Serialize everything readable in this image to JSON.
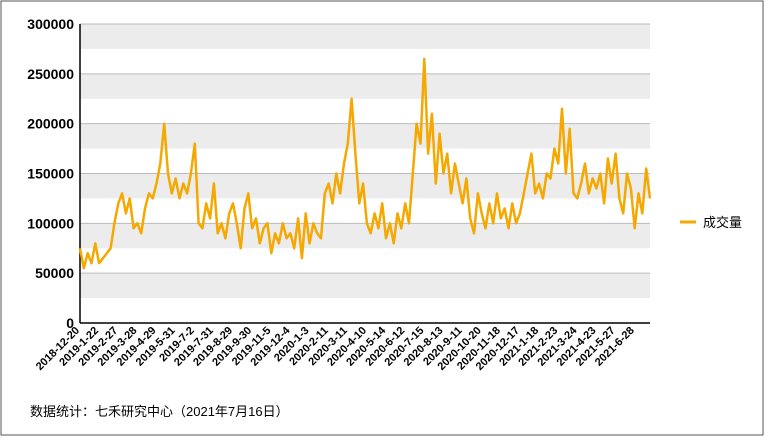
{
  "chart_data": {
    "type": "line",
    "note": "数据统计：七禾研究中心（2021年7月16日）",
    "categories": [
      "2018-12-20",
      null,
      null,
      null,
      null,
      "2019-1-22",
      null,
      null,
      null,
      null,
      "2019-2-27",
      null,
      null,
      null,
      null,
      "2019-3-28",
      null,
      null,
      null,
      null,
      "2019-4-29",
      null,
      null,
      null,
      null,
      "2019-5-31",
      null,
      null,
      null,
      null,
      "2019-7-2",
      null,
      null,
      null,
      null,
      "2019-7-31",
      null,
      null,
      null,
      null,
      "2019-8-29",
      null,
      null,
      null,
      null,
      "2019-9-30",
      null,
      null,
      null,
      null,
      "2019-11-5",
      null,
      null,
      null,
      null,
      "2019-12-4",
      null,
      null,
      null,
      null,
      "2020-1-3",
      null,
      null,
      null,
      null,
      "2020-2-11",
      null,
      null,
      null,
      null,
      "2020-3-11",
      null,
      null,
      null,
      null,
      "2020-4-10",
      null,
      null,
      null,
      null,
      "2020-5-14",
      null,
      null,
      null,
      null,
      "2020-6-12",
      null,
      null,
      null,
      null,
      "2020-7-15",
      null,
      null,
      null,
      null,
      "2020-8-13",
      null,
      null,
      null,
      null,
      "2020-9-11",
      null,
      null,
      null,
      null,
      "2020-10-20",
      null,
      null,
      null,
      null,
      "2020-11-18",
      null,
      null,
      null,
      null,
      "2020-12-17",
      null,
      null,
      null,
      null,
      "2021-1-18",
      null,
      null,
      null,
      null,
      "2021-2-23",
      null,
      null,
      null,
      null,
      "2021-3-24",
      null,
      null,
      null,
      null,
      "2021-4-23",
      null,
      null,
      null,
      null,
      "2021-5-27",
      null,
      null,
      null,
      null,
      "2021-6-28",
      null,
      null,
      null,
      null
    ],
    "series": [
      {
        "name": "成交量",
        "color": "#f5a800",
        "values": [
          75000,
          55000,
          70000,
          60000,
          80000,
          60000,
          65000,
          70000,
          75000,
          100000,
          120000,
          130000,
          110000,
          125000,
          95000,
          100000,
          90000,
          115000,
          130000,
          125000,
          140000,
          160000,
          200000,
          150000,
          130000,
          145000,
          125000,
          140000,
          130000,
          150000,
          180000,
          100000,
          95000,
          120000,
          105000,
          140000,
          90000,
          100000,
          85000,
          110000,
          120000,
          100000,
          75000,
          115000,
          130000,
          95000,
          105000,
          80000,
          95000,
          100000,
          70000,
          90000,
          80000,
          100000,
          85000,
          90000,
          75000,
          105000,
          65000,
          110000,
          80000,
          100000,
          90000,
          85000,
          130000,
          140000,
          120000,
          150000,
          130000,
          160000,
          180000,
          225000,
          170000,
          120000,
          140000,
          100000,
          90000,
          110000,
          95000,
          120000,
          85000,
          100000,
          80000,
          110000,
          95000,
          120000,
          100000,
          150000,
          200000,
          180000,
          265000,
          170000,
          210000,
          140000,
          190000,
          150000,
          170000,
          130000,
          160000,
          140000,
          120000,
          145000,
          105000,
          90000,
          130000,
          110000,
          95000,
          120000,
          100000,
          130000,
          105000,
          115000,
          95000,
          120000,
          100000,
          110000,
          130000,
          150000,
          170000,
          130000,
          140000,
          125000,
          150000,
          145000,
          175000,
          160000,
          215000,
          150000,
          195000,
          130000,
          125000,
          140000,
          160000,
          130000,
          145000,
          135000,
          150000,
          120000,
          165000,
          140000,
          170000,
          125000,
          110000,
          150000,
          135000,
          95000,
          130000,
          110000,
          155000,
          125000
        ]
      }
    ],
    "ylim": [
      0,
      300000
    ],
    "yticks": [
      0,
      50000,
      100000,
      150000,
      200000,
      250000,
      300000
    ],
    "grid": true,
    "legend": "right"
  }
}
